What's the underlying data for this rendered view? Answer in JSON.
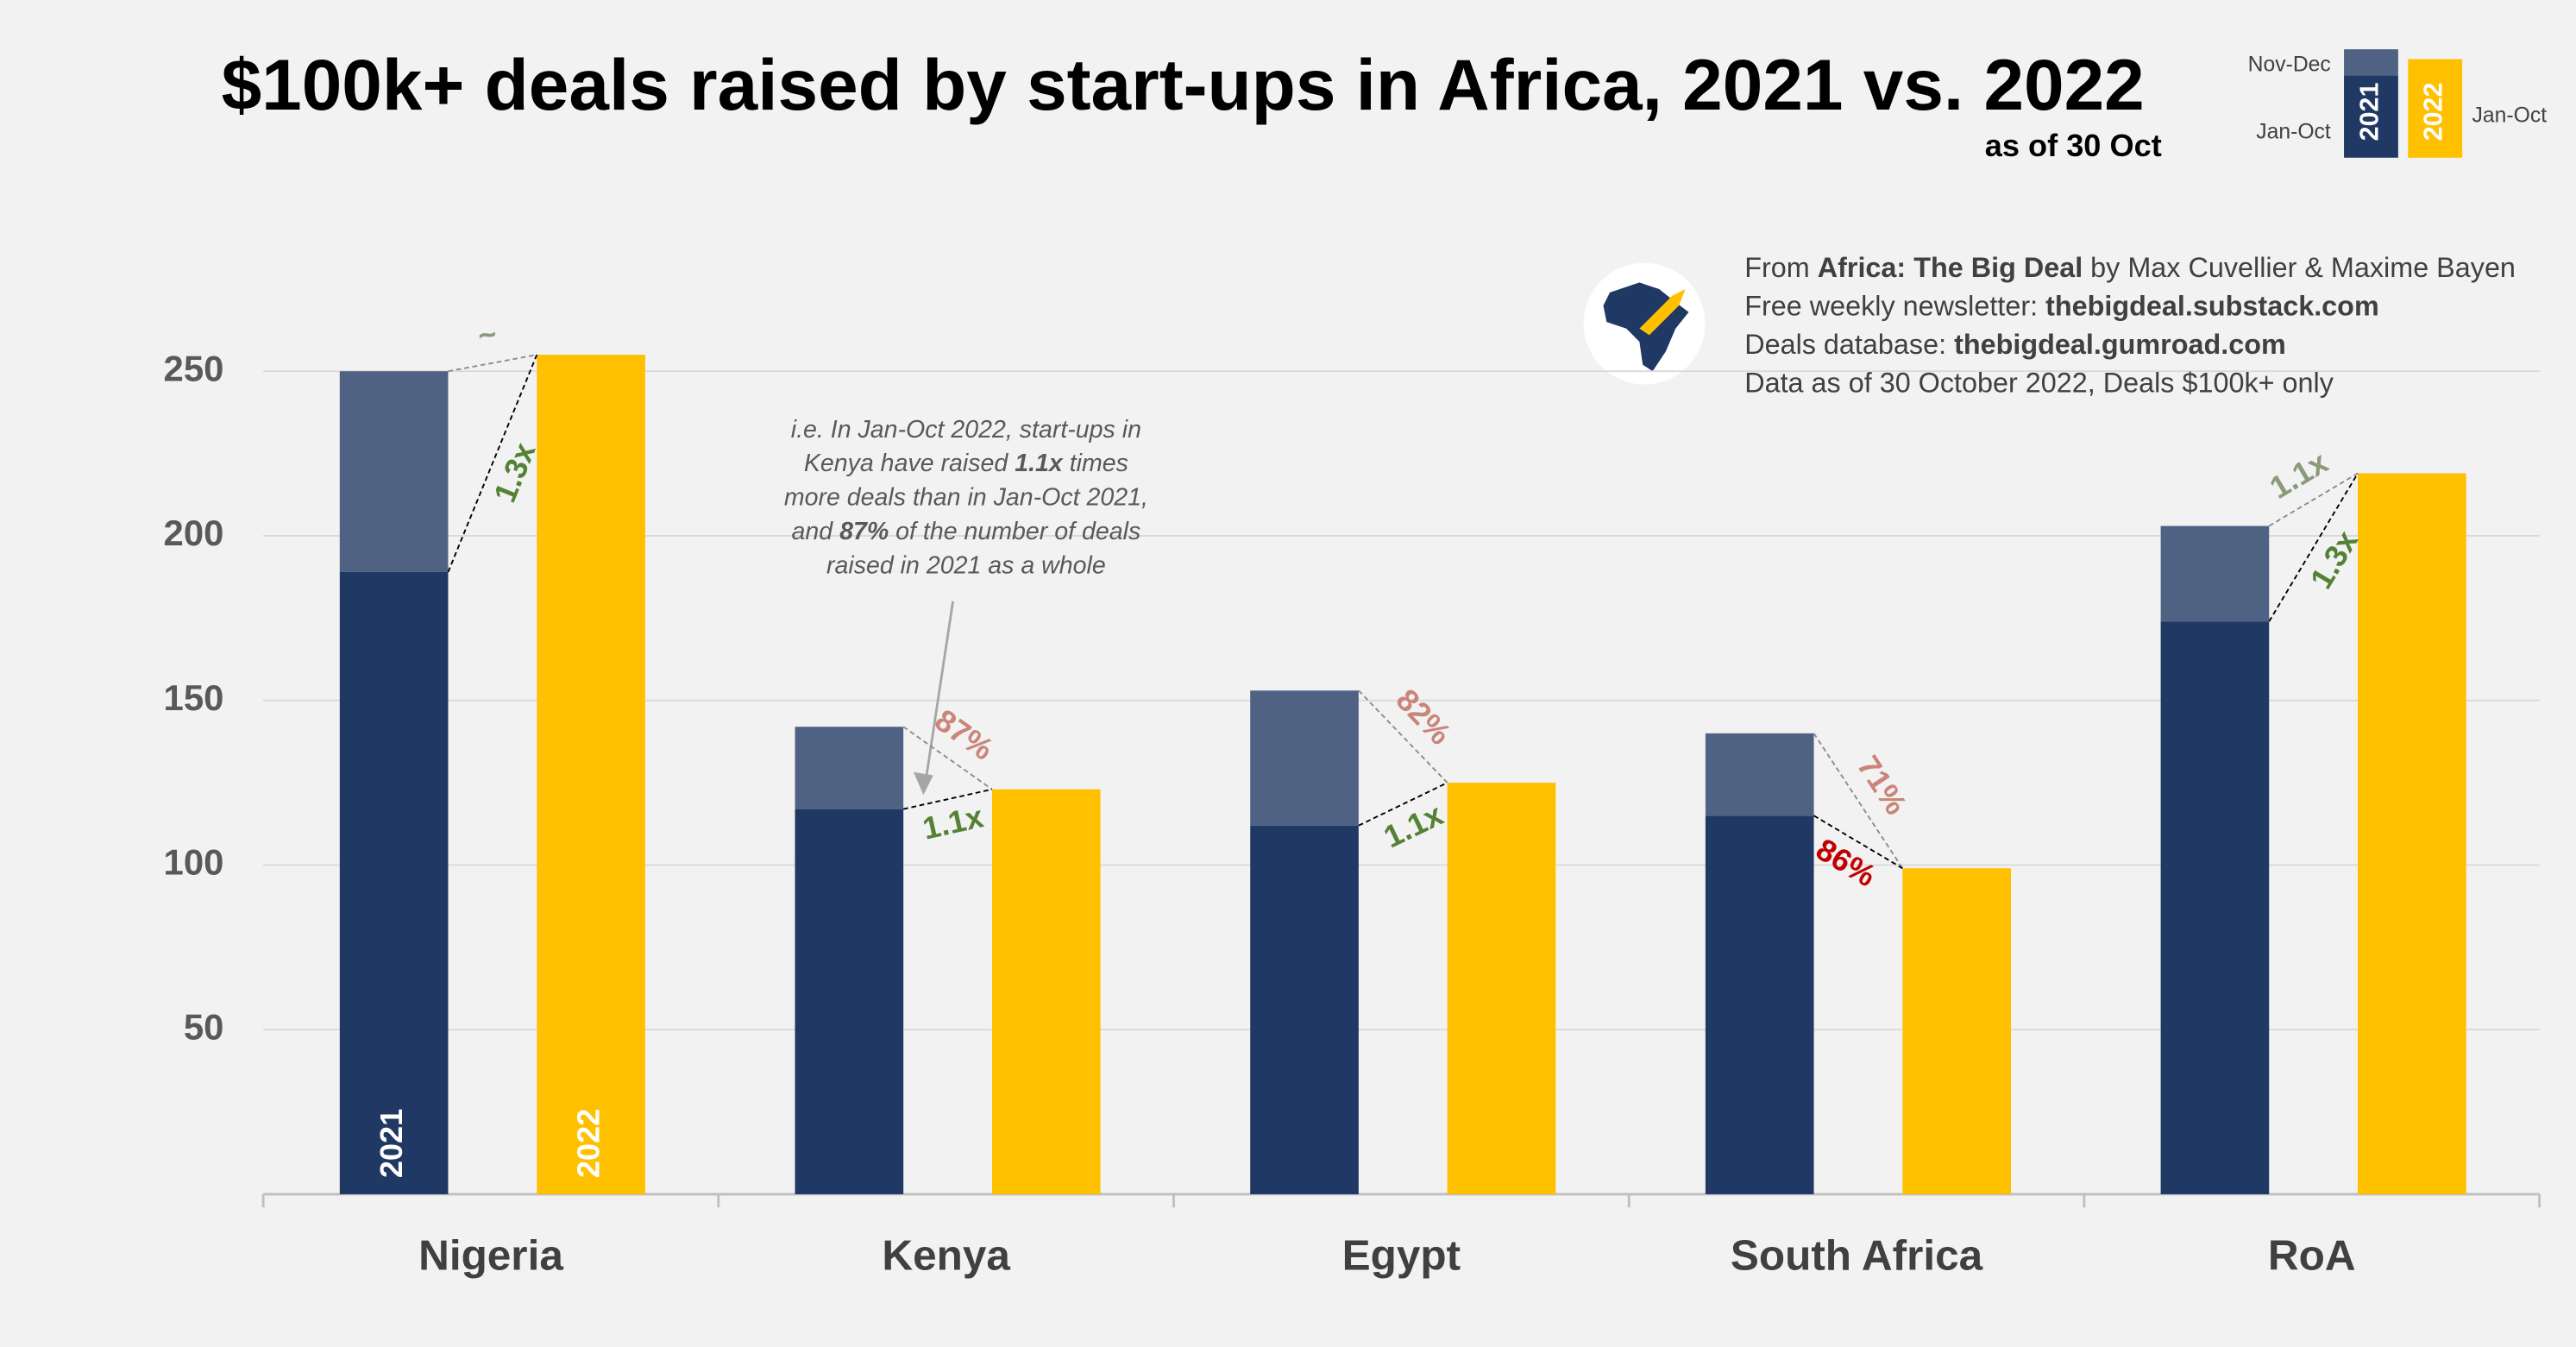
{
  "chart_data": {
    "type": "bar",
    "title": "$100k+ deals raised by start-ups in Africa, 2021 vs. 2022",
    "subtitle": "as of 30 Oct",
    "categories": [
      "Nigeria",
      "Kenya",
      "Egypt",
      "South Africa",
      "RoA"
    ],
    "series": [
      {
        "name": "Jan-Oct",
        "year": "2021",
        "color": "#1f3864",
        "values": [
          189,
          117,
          112,
          115,
          174
        ]
      },
      {
        "name": "Nov-Dec",
        "year": "2021",
        "color": "#4f6284",
        "values": [
          61,
          25,
          41,
          25,
          29
        ]
      },
      {
        "name": "Jan-Oct",
        "year": "2022",
        "color": "#ffc000",
        "values": [
          255,
          123,
          125,
          99,
          219
        ]
      }
    ],
    "ylim": [
      0,
      270
    ],
    "yticks": [
      50,
      100,
      150,
      200,
      250
    ],
    "grid": true,
    "ratio_vs_jan_oct": {
      "labels": [
        "1.3x",
        "1.1x",
        "1.1x",
        "86%",
        "1.3x"
      ],
      "colors": [
        "#548235",
        "#548235",
        "#548235",
        "#c00000",
        "#548235"
      ]
    },
    "ratio_vs_full_year": {
      "labels": [
        "~",
        "87%",
        "82%",
        "71%",
        "1.1x"
      ],
      "colors": [
        "#8a9a7a",
        "#c9857a",
        "#c9857a",
        "#c9857a",
        "#8a9a7a"
      ]
    },
    "note": [
      [
        "i.e. In Jan-Oct 2022, start-ups in"
      ],
      [
        "Kenya have raised ",
        {
          "b": "1.1x"
        },
        " times"
      ],
      [
        "more deals than in Jan-Oct 2021,"
      ],
      [
        "and ",
        {
          "b": "87%"
        },
        " of the number of deals"
      ],
      [
        "raised in 2021 as a whole"
      ]
    ],
    "source": [
      [
        "From ",
        {
          "b": "Africa: The Big Deal"
        },
        " by Max Cuvellier & Maxime Bayen"
      ],
      [
        "Free weekly newsletter: ",
        {
          "b": "thebigdeal.substack.com"
        }
      ],
      [
        "Deals database: ",
        {
          "b": "thebigdeal.gumroad.com"
        }
      ],
      [
        "Data as of 30 October 2022, Deals $100k+ only"
      ]
    ]
  }
}
